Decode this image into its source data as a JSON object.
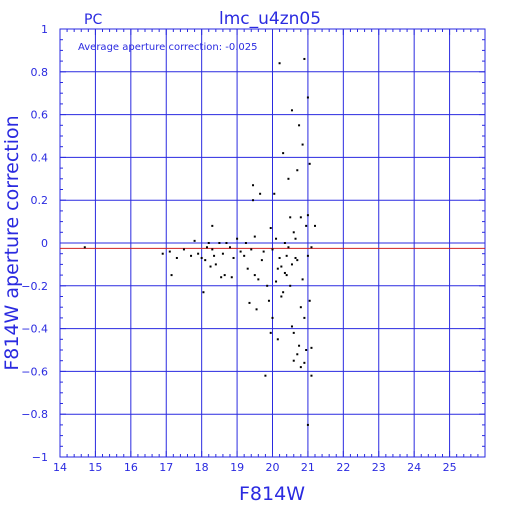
{
  "chart_data": {
    "type": "scatter",
    "corner_label": "PC",
    "title": "lmc_u4zn05",
    "xlabel": "F814W",
    "ylabel": "F814W aperture correction",
    "annotation": "Average aperture correction:  -0.025",
    "average_value": -0.025,
    "xlim": [
      14,
      26
    ],
    "ylim": [
      -1,
      1
    ],
    "x_ticks": [
      14,
      15,
      16,
      17,
      18,
      19,
      20,
      21,
      22,
      23,
      24,
      25
    ],
    "y_ticks": [
      -1,
      -0.8,
      -0.6,
      -0.4,
      -0.2,
      0,
      0.2,
      0.4,
      0.6,
      0.8,
      1
    ],
    "y_tick_labels": [
      "−1",
      "−0.8",
      "−0.6",
      "−0.4",
      "−0.2",
      "0",
      "0.2",
      "0.4",
      "0.6",
      "0.8",
      "1"
    ],
    "grid": true,
    "colors": {
      "axes": "#2a2ae0",
      "grid": "#2a2ae0",
      "zero_line": "#2a2ae0",
      "average_line": "#d02020",
      "points": "#000000"
    },
    "points": [
      [
        14.7,
        -0.02
      ],
      [
        16.9,
        -0.05
      ],
      [
        17.1,
        -0.04
      ],
      [
        17.15,
        -0.15
      ],
      [
        17.3,
        -0.07
      ],
      [
        17.5,
        -0.03
      ],
      [
        17.7,
        -0.06
      ],
      [
        17.8,
        0.01
      ],
      [
        17.9,
        -0.05
      ],
      [
        18.0,
        -0.07
      ],
      [
        18.05,
        -0.23
      ],
      [
        18.1,
        -0.08
      ],
      [
        18.15,
        -0.02
      ],
      [
        18.2,
        0.0
      ],
      [
        18.25,
        -0.11
      ],
      [
        18.3,
        0.08
      ],
      [
        18.3,
        -0.03
      ],
      [
        18.35,
        -0.06
      ],
      [
        18.4,
        -0.1
      ],
      [
        18.5,
        0.0
      ],
      [
        18.55,
        -0.16
      ],
      [
        18.6,
        -0.05
      ],
      [
        18.65,
        -0.15
      ],
      [
        18.7,
        0.0
      ],
      [
        18.8,
        -0.02
      ],
      [
        18.85,
        -0.16
      ],
      [
        18.9,
        -0.07
      ],
      [
        19.0,
        0.02
      ],
      [
        19.1,
        -0.04
      ],
      [
        19.2,
        -0.06
      ],
      [
        19.25,
        0.0
      ],
      [
        19.3,
        -0.12
      ],
      [
        19.35,
        -0.28
      ],
      [
        19.4,
        -0.03
      ],
      [
        19.45,
        0.27
      ],
      [
        19.45,
        0.2
      ],
      [
        19.5,
        -0.15
      ],
      [
        19.5,
        0.03
      ],
      [
        19.55,
        -0.31
      ],
      [
        19.6,
        -0.17
      ],
      [
        19.65,
        0.23
      ],
      [
        19.7,
        -0.08
      ],
      [
        19.75,
        -0.04
      ],
      [
        19.8,
        -0.62
      ],
      [
        19.85,
        -0.2
      ],
      [
        19.9,
        -0.27
      ],
      [
        19.95,
        0.07
      ],
      [
        20.0,
        -0.35
      ],
      [
        20.0,
        -0.03
      ],
      [
        20.05,
        0.23
      ],
      [
        20.1,
        0.02
      ],
      [
        20.1,
        -0.18
      ],
      [
        20.15,
        -0.45
      ],
      [
        20.2,
        -0.07
      ],
      [
        20.2,
        0.84
      ],
      [
        20.25,
        -0.11
      ],
      [
        20.3,
        0.42
      ],
      [
        20.3,
        -0.23
      ],
      [
        20.35,
        -0.14
      ],
      [
        20.4,
        -0.06
      ],
      [
        20.45,
        0.3
      ],
      [
        20.5,
        0.12
      ],
      [
        20.5,
        -0.2
      ],
      [
        20.55,
        0.62
      ],
      [
        20.55,
        -0.39
      ],
      [
        20.6,
        -0.55
      ],
      [
        20.6,
        0.05
      ],
      [
        20.65,
        -0.07
      ],
      [
        20.7,
        0.34
      ],
      [
        20.7,
        -0.08
      ],
      [
        20.75,
        0.55
      ],
      [
        20.75,
        -0.48
      ],
      [
        20.8,
        0.12
      ],
      [
        20.8,
        -0.58
      ],
      [
        20.85,
        -0.17
      ],
      [
        20.85,
        0.46
      ],
      [
        20.9,
        -0.35
      ],
      [
        20.9,
        0.86
      ],
      [
        20.95,
        0.08
      ],
      [
        20.95,
        -0.5
      ],
      [
        21.0,
        0.68
      ],
      [
        21.0,
        0.13
      ],
      [
        21.0,
        -0.06
      ],
      [
        21.05,
        -0.27
      ],
      [
        21.05,
        0.37
      ],
      [
        21.1,
        -0.49
      ],
      [
        21.1,
        -0.62
      ],
      [
        21.1,
        -0.02
      ],
      [
        21.0,
        -0.85
      ],
      [
        20.9,
        -0.56
      ],
      [
        20.8,
        -0.3
      ],
      [
        20.7,
        -0.52
      ],
      [
        20.65,
        0.02
      ],
      [
        20.55,
        -0.1
      ],
      [
        20.45,
        -0.02
      ],
      [
        20.35,
        0.0
      ],
      [
        20.25,
        -0.25
      ],
      [
        20.15,
        -0.12
      ],
      [
        21.2,
        0.08
      ],
      [
        20.6,
        -0.42
      ],
      [
        20.4,
        -0.15
      ],
      [
        19.95,
        -0.42
      ]
    ]
  }
}
